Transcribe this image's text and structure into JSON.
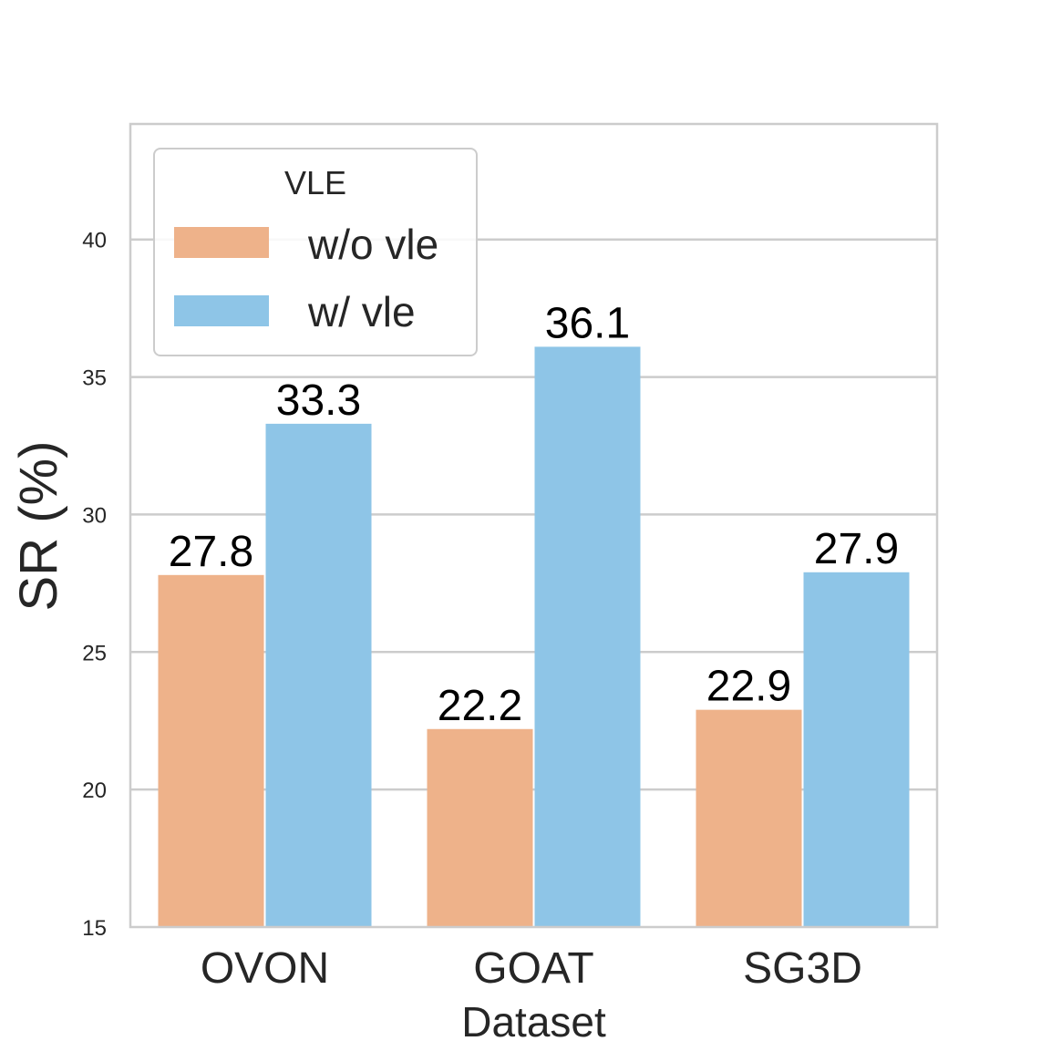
{
  "chart_data": {
    "type": "bar",
    "categories": [
      "OVON",
      "GOAT",
      "SG3D"
    ],
    "series": [
      {
        "name": "w/o vle",
        "values": [
          27.8,
          22.2,
          22.9
        ],
        "color": "#EEB28A"
      },
      {
        "name": "w/ vle",
        "values": [
          33.3,
          36.1,
          27.9
        ],
        "color": "#8EC5E7"
      }
    ],
    "value_labels": [
      [
        "27.8",
        "22.2",
        "22.9"
      ],
      [
        "33.3",
        "36.1",
        "27.9"
      ]
    ],
    "xlabel": "Dataset",
    "ylabel": "SR (%)",
    "ylim": [
      15,
      44.2
    ],
    "yticks": [
      "15",
      "20",
      "25",
      "30",
      "35",
      "40"
    ],
    "grid": true,
    "legend": {
      "title": "VLE",
      "position": "top-left"
    }
  }
}
